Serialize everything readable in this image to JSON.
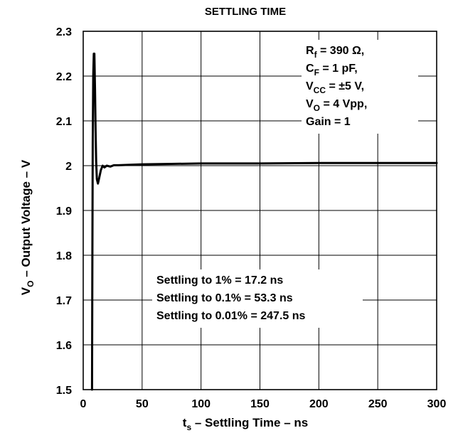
{
  "chart_data": {
    "type": "line",
    "title": "SETTLING TIME",
    "xlabel": {
      "main": "t",
      "sub": "s",
      "rest": " – Settling Time – ns"
    },
    "ylabel": {
      "main": "V",
      "sub": "O",
      "rest": " – Output Voltage – V"
    },
    "xlim": [
      0,
      300
    ],
    "ylim": [
      1.5,
      2.3
    ],
    "xticks": [
      0,
      50,
      100,
      150,
      200,
      250,
      300
    ],
    "yticks": [
      1.5,
      1.6,
      1.7,
      1.8,
      1.9,
      2.0,
      2.1,
      2.2,
      2.3
    ],
    "xtick_labels": [
      "0",
      "50",
      "100",
      "150",
      "200",
      "250",
      "300"
    ],
    "ytick_labels": [
      "1.5",
      "1.6",
      "1.7",
      "1.8",
      "1.9",
      "2",
      "2.1",
      "2.2",
      "2.3"
    ],
    "grid": true,
    "series": [
      {
        "color": "#000000",
        "x": [
          7.5,
          7.8,
          8.1,
          8.5,
          9.0,
          9.5,
          10.0,
          10.5,
          11.0,
          11.6,
          12.5,
          13.5,
          15.0,
          16.5,
          18.0,
          20.0,
          23.0,
          26.0,
          30.0,
          40.0,
          50.0,
          75.0,
          100.0,
          150.0,
          200.0,
          250.0,
          300.0
        ],
        "y": [
          1.5,
          1.8,
          2.05,
          2.2,
          2.25,
          2.25,
          2.17,
          2.08,
          2.01,
          1.97,
          1.96,
          1.972,
          1.99,
          2.0,
          1.996,
          2.0,
          1.998,
          2.001,
          2.001,
          2.002,
          2.003,
          2.004,
          2.005,
          2.005,
          2.006,
          2.006,
          2.006
        ]
      }
    ],
    "annotations": {
      "conditions": [
        {
          "main": "R",
          "sub": "f",
          "rest": " = 390 Ω,"
        },
        {
          "main": "C",
          "sub": "F",
          "rest": " = 1 pF,"
        },
        {
          "main": "V",
          "sub": "CC",
          "rest": " = ±5 V,"
        },
        {
          "main": "V",
          "sub": "O",
          "rest": " = 4 Vpp,"
        },
        {
          "main": "Gain = 1",
          "sub": "",
          "rest": ""
        }
      ],
      "settling": [
        "Settling to 1% = 17.2 ns",
        "Settling to 0.1% = 53.3 ns",
        "Settling to 0.01% = 247.5 ns"
      ]
    }
  }
}
